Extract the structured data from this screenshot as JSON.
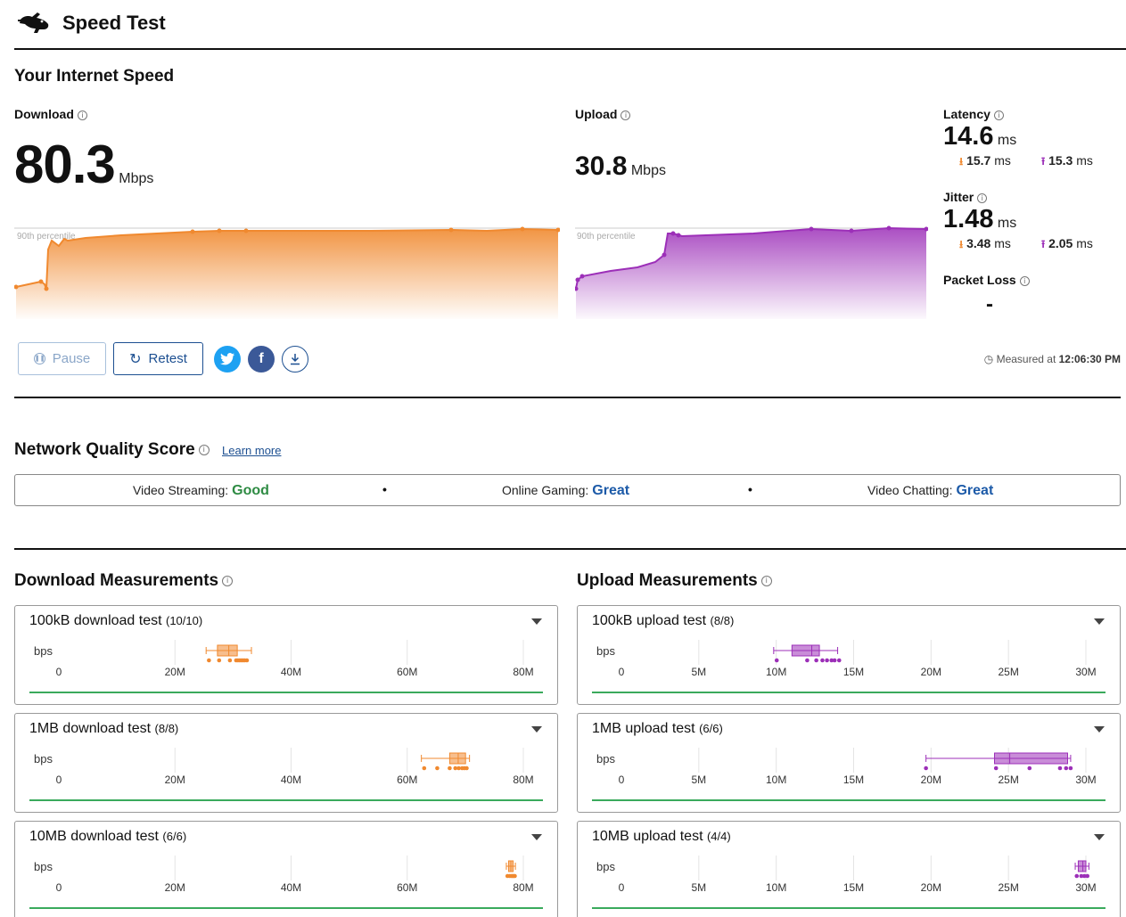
{
  "header": {
    "app_title": "Speed Test",
    "logo_icon": "rabbit-icon"
  },
  "speed": {
    "section_title": "Your Internet Speed",
    "download": {
      "label": "Download",
      "value": "80.3",
      "unit": "Mbps",
      "percentile_label": "90th percentile"
    },
    "upload": {
      "label": "Upload",
      "value": "30.8",
      "unit": "Mbps",
      "percentile_label": "90th percentile"
    },
    "latency": {
      "label": "Latency",
      "value": "14.6",
      "unit": "ms",
      "down_value": "15.7",
      "down_unit": "ms",
      "up_value": "15.3",
      "up_unit": "ms"
    },
    "jitter": {
      "label": "Jitter",
      "value": "1.48",
      "unit": "ms",
      "down_value": "3.48",
      "down_unit": "ms",
      "up_value": "2.05",
      "up_unit": "ms"
    },
    "packet_loss": {
      "label": "Packet Loss",
      "value": "-"
    }
  },
  "actions": {
    "pause_label": "Pause",
    "retest_label": "Retest",
    "measured_prefix": "Measured at",
    "measured_time": "12:06:30 PM"
  },
  "quality": {
    "title": "Network Quality Score",
    "learn_more": "Learn more",
    "items": [
      {
        "label": "Video Streaming:",
        "value": "Good",
        "color": "#2e8b43"
      },
      {
        "label": "Online Gaming:",
        "value": "Great",
        "color": "#1c5aa8"
      },
      {
        "label": "Video Chatting:",
        "value": "Great",
        "color": "#1c5aa8"
      }
    ]
  },
  "colors": {
    "download": "#f0892f",
    "upload": "#9c2fb8",
    "baseline": "#3aaa5c"
  },
  "measurements": {
    "download_title": "Download Measurements",
    "upload_title": "Upload Measurements",
    "unit_label": "bps",
    "download_axis": [
      "0",
      "20M",
      "40M",
      "60M",
      "80M"
    ],
    "upload_axis": [
      "0",
      "5M",
      "10M",
      "15M",
      "20M",
      "25M",
      "30M"
    ],
    "download_tests": [
      {
        "title": "100kB download test",
        "count": "(10/10)"
      },
      {
        "title": "1MB download test",
        "count": "(8/8)"
      },
      {
        "title": "10MB download test",
        "count": "(6/6)"
      }
    ],
    "upload_tests": [
      {
        "title": "100kB upload test",
        "count": "(8/8)"
      },
      {
        "title": "1MB upload test",
        "count": "(6/6)"
      },
      {
        "title": "10MB upload test",
        "count": "(4/4)"
      }
    ]
  },
  "chart_data": [
    {
      "type": "area",
      "series": [
        {
          "name": "Download",
          "values": [
            12,
            13.5,
            13,
            12.5,
            28,
            30,
            31,
            29,
            32,
            33,
            35,
            36,
            37,
            37.5,
            37.8,
            37.6,
            37.8,
            37.8,
            37.8,
            37.8,
            37.7,
            37.8,
            37.8,
            37.8
          ]
        }
      ],
      "ylim": [
        0,
        45
      ]
    },
    {
      "type": "area",
      "series": [
        {
          "name": "Upload",
          "values": [
            5,
            8,
            9,
            10,
            11,
            12,
            14,
            17,
            20,
            30,
            31,
            31.5,
            31,
            31.2,
            31.5,
            32,
            32.5,
            33,
            33,
            32.8,
            33,
            33,
            33
          ]
        }
      ],
      "ylim": [
        0,
        45
      ]
    },
    {
      "type": "scatter",
      "name": "100kB download test",
      "xlim": [
        0,
        82000000
      ],
      "box": {
        "min": 26000000,
        "q1": 28000000,
        "median": 30000000,
        "q3": 31500000,
        "max": 34000000
      },
      "points": [
        26500000,
        28300000,
        30200000,
        31300000,
        31600000,
        31900000,
        32200000,
        32500000,
        32800000,
        33200000
      ]
    },
    {
      "type": "scatter",
      "name": "1MB download test",
      "xlim": [
        0,
        82000000
      ],
      "box": {
        "min": 64000000,
        "q1": 69000000,
        "median": 70500000,
        "q3": 71800000,
        "max": 72500000
      },
      "points": [
        64500000,
        66800000,
        69000000,
        70000000,
        70600000,
        71200000,
        71600000,
        72000000
      ]
    },
    {
      "type": "scatter",
      "name": "10MB download test",
      "xlim": [
        0,
        82000000
      ],
      "box": {
        "min": 79000000,
        "q1": 79400000,
        "median": 79800000,
        "q3": 80200000,
        "max": 80600000
      },
      "points": [
        79200000,
        79600000,
        79900000,
        80100000,
        80300000,
        80500000
      ]
    },
    {
      "type": "scatter",
      "name": "100kB upload test",
      "xlim": [
        0,
        30500000
      ],
      "box": {
        "min": 10000000,
        "q1": 11200000,
        "median": 12500000,
        "q3": 13000000,
        "max": 14200000
      },
      "points": [
        10200000,
        12200000,
        12800000,
        13200000,
        13500000,
        13800000,
        14000000,
        14300000
      ]
    },
    {
      "type": "scatter",
      "name": "1MB upload test",
      "xlim": [
        0,
        30500000
      ],
      "box": {
        "min": 20000000,
        "q1": 24500000,
        "median": 25500000,
        "q3": 29300000,
        "max": 29500000
      },
      "points": [
        20000000,
        24600000,
        26800000,
        28800000,
        29200000,
        29500000
      ]
    },
    {
      "type": "scatter",
      "name": "10MB upload test",
      "xlim": [
        0,
        30500000
      ],
      "box": {
        "min": 29800000,
        "q1": 30000000,
        "median": 30300000,
        "q3": 30500000,
        "max": 30700000
      },
      "points": [
        29900000,
        30200000,
        30400000,
        30600000
      ]
    }
  ]
}
